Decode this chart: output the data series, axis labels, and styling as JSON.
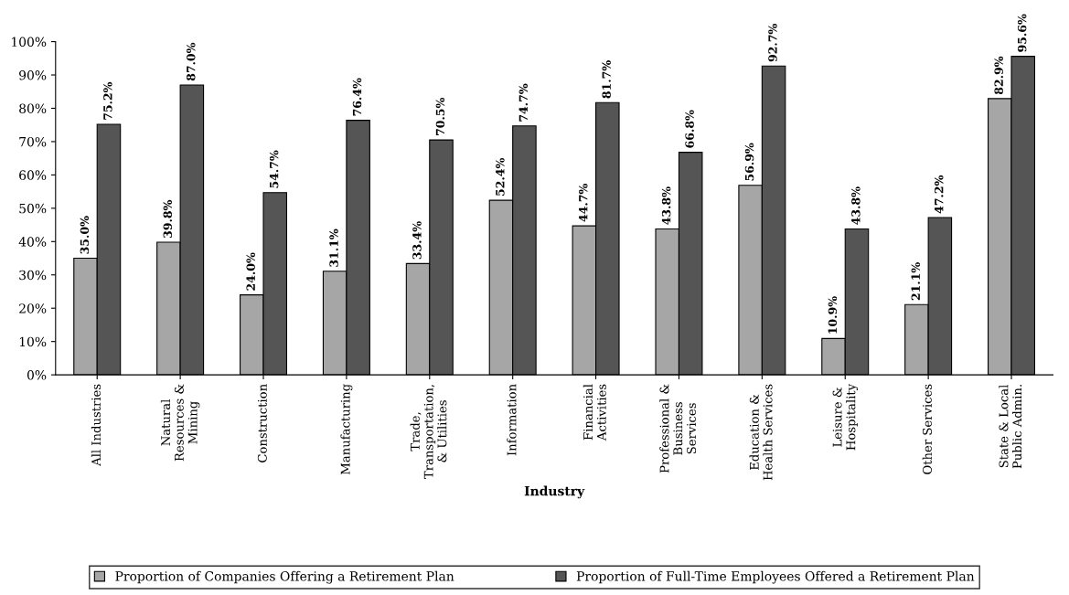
{
  "chart_data": {
    "type": "bar",
    "xlabel": "Industry",
    "categories": [
      "All Industries",
      "Natural\nResources &\nMining",
      "Construction",
      "Manufacturing",
      "Trade,\nTransportation,\n& Utilities",
      "Information",
      "Financial\nActivities",
      "Professional &\nBusiness\nServices",
      "Education &\nHealth Services",
      "Leisure &\nHospitality",
      "Other Services",
      "State & Local\nPublic Admin."
    ],
    "series": [
      {
        "name": "Proportion of Companies Offering a Retirement Plan",
        "color": "#a6a6a6",
        "values": [
          35.0,
          39.8,
          24.0,
          31.1,
          33.4,
          52.4,
          44.7,
          43.8,
          56.9,
          10.9,
          21.1,
          82.9
        ],
        "value_labels": [
          "35.0%",
          "39.8%",
          "24.0%",
          "31.1%",
          "33.4%",
          "52.4%",
          "44.7%",
          "43.8%",
          "56.9%",
          "10.9%",
          "21.1%",
          "82.9%"
        ]
      },
      {
        "name": "Proportion of Full-Time Employees Offered a Retirement Plan",
        "color": "#555555",
        "values": [
          75.2,
          87.0,
          54.7,
          76.4,
          70.5,
          74.7,
          81.7,
          66.8,
          92.7,
          43.8,
          47.2,
          95.6
        ],
        "value_labels": [
          "75.2%",
          "87.0%",
          "54.7%",
          "76.4%",
          "70.5%",
          "74.7%",
          "81.7%",
          "66.8%",
          "92.7%",
          "43.8%",
          "47.2%",
          "95.6%"
        ]
      }
    ],
    "ylim": [
      0,
      100
    ],
    "yticks": [
      {
        "value": 0,
        "label": "0%"
      },
      {
        "value": 10,
        "label": "10%"
      },
      {
        "value": 20,
        "label": "20%"
      },
      {
        "value": 30,
        "label": "30%"
      },
      {
        "value": 40,
        "label": "40%"
      },
      {
        "value": 50,
        "label": "50%"
      },
      {
        "value": 60,
        "label": "60%"
      },
      {
        "value": 70,
        "label": "70%"
      },
      {
        "value": 80,
        "label": "80%"
      },
      {
        "value": 90,
        "label": "90%"
      },
      {
        "value": 100,
        "label": "100%"
      }
    ],
    "grid": false,
    "legend": "bottom"
  }
}
